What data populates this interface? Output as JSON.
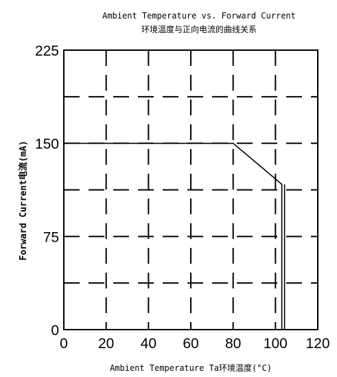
{
  "chart_data": {
    "type": "line",
    "title": "Ambient Temperature vs. Forward Current",
    "subtitle": "环境温度与正向电流的曲线关系",
    "xlabel": "Ambient Temperature Ta环境温度(°C)",
    "ylabel": "Forward Current电流(mA)",
    "xlim": [
      0,
      120
    ],
    "ylim": [
      0,
      225
    ],
    "x_ticks": [
      "0",
      "20",
      "40",
      "60",
      "80",
      "100",
      "120"
    ],
    "y_ticks": [
      "0",
      "75",
      "150",
      "225"
    ],
    "grid": true,
    "series": [
      {
        "x": [
          0,
          80,
          103,
          103
        ],
        "y": [
          150,
          150,
          117,
          0
        ]
      }
    ]
  }
}
